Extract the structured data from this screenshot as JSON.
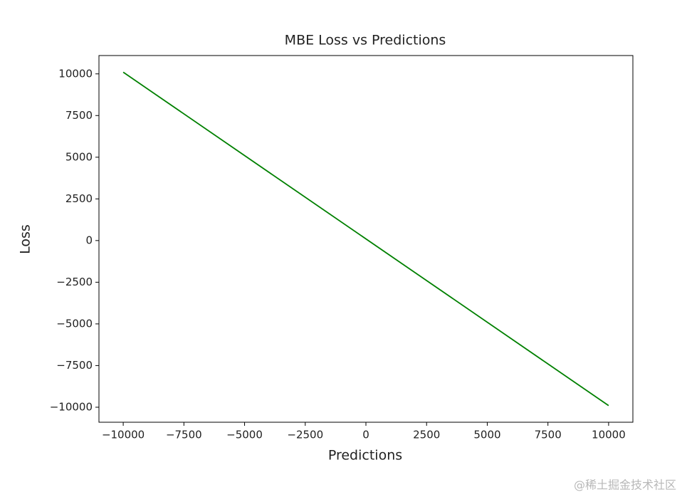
{
  "chart_data": {
    "type": "line",
    "title": "MBE Loss vs Predictions",
    "x_label": "Predictions",
    "y_label": "Loss",
    "x": [
      -10000,
      10000
    ],
    "series": [
      {
        "name": "MBE Loss",
        "color": "green",
        "values": [
          10100,
          -9900
        ]
      }
    ],
    "xlim": [
      -11000,
      11000
    ],
    "xticks": [
      {
        "value": -10000,
        "label": "−10000"
      },
      {
        "value": -7500,
        "label": "−7500"
      },
      {
        "value": -5000,
        "label": "−5000"
      },
      {
        "value": -2500,
        "label": "−2500"
      },
      0,
      2500,
      5000,
      7500,
      10000
    ],
    "ylim": [
      -10900,
      11100
    ],
    "yticks": [
      {
        "value": -10000,
        "label": "−10000"
      },
      {
        "value": -7500,
        "label": "−7500"
      },
      {
        "value": -5000,
        "label": "−5000"
      },
      {
        "value": -2500,
        "label": "−2500"
      },
      0,
      2500,
      5000,
      7500,
      10000
    ],
    "grid": false,
    "watermark": "@稀土掘金技术社区"
  }
}
